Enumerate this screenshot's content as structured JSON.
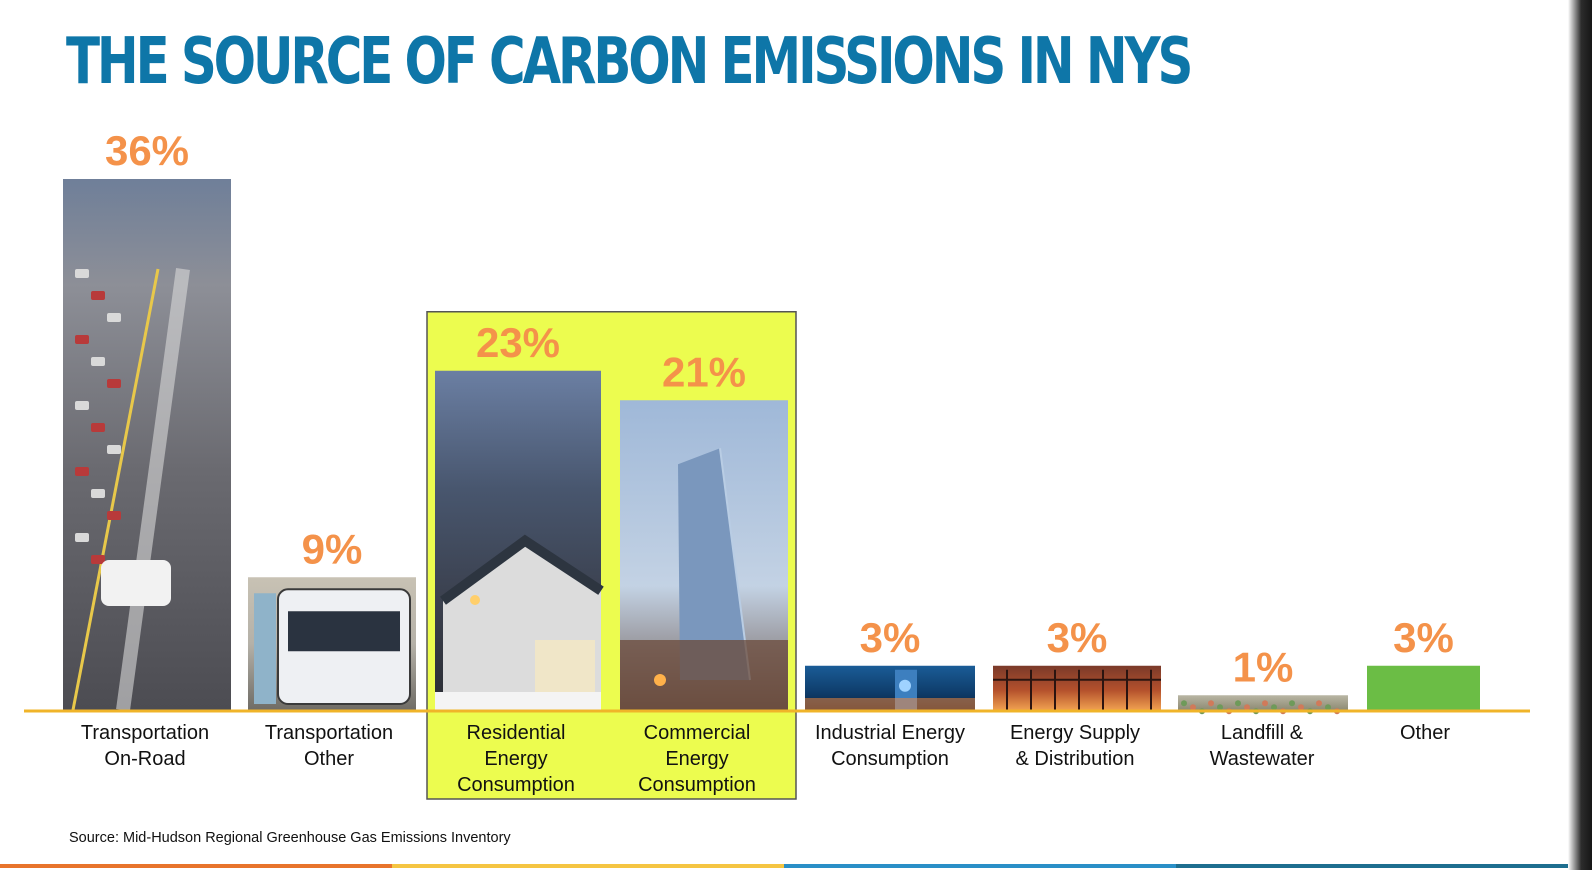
{
  "title": "THE SOURCE OF CARBON EMISSIONS IN NYS",
  "source": "Source: Mid-Hudson Regional Greenhouse Gas Emissions Inventory",
  "colors": {
    "title": "#0e76a8",
    "value_labels": "#f4924a",
    "axis_line": "#f0b429",
    "highlight_fill": "#ecfc4f",
    "other_bar": "#6bbd45",
    "footer": [
      "#e8742c",
      "#f5c542",
      "#2a8fc7",
      "#1d6e8f"
    ]
  },
  "chart_data": {
    "type": "bar",
    "unit": "%",
    "ylim": [
      0,
      36
    ],
    "grid": false,
    "legend": "none",
    "categories": [
      "Transportation On-Road",
      "Transportation Other",
      "Residential Energy Consumption",
      "Commercial Energy Consumption",
      "Industrial Energy Consumption",
      "Energy Supply & Distribution",
      "Landfill & Wastewater",
      "Other"
    ],
    "category_labels": [
      "Transportation\nOn-Road",
      "Transportation\nOther",
      "Residential\nEnergy\nConsumption",
      "Commercial\nEnergy\nConsumption",
      "Industrial Energy\nConsumption",
      "Energy Supply\n& Distribution",
      "Landfill &\nWastewater",
      "Other"
    ],
    "values": [
      36,
      9,
      23,
      21,
      3,
      3,
      1,
      3
    ],
    "value_labels": [
      "36%",
      "9%",
      "23%",
      "21%",
      "3%",
      "3%",
      "1%",
      "3%"
    ],
    "bar_images": [
      "highway-traffic",
      "city-bus",
      "suburban-house",
      "glass-skyscraper",
      "industrial-plant",
      "power-substation",
      "landfill",
      "solid-green"
    ],
    "highlighted_categories": [
      "Residential Energy Consumption",
      "Commercial Energy Consumption"
    ]
  }
}
